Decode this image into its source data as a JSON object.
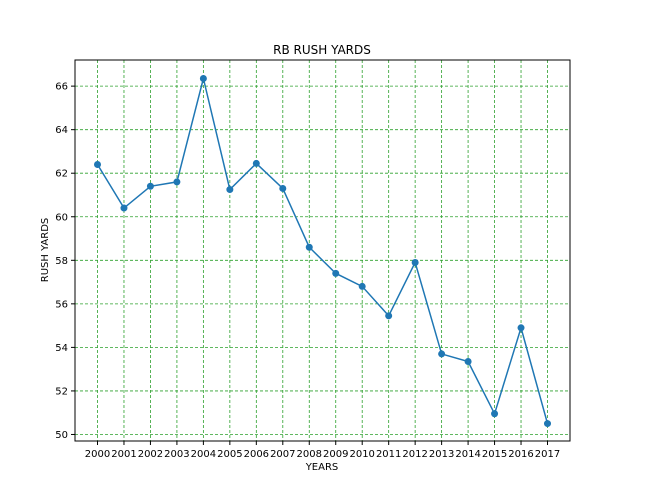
{
  "chart_data": {
    "type": "line",
    "title": "RB RUSH YARDS",
    "xlabel": "YEARS",
    "ylabel": "RUSH YARDS",
    "categories": [
      "2000",
      "2001",
      "2002",
      "2003",
      "2004",
      "2005",
      "2006",
      "2007",
      "2008",
      "2009",
      "2010",
      "2011",
      "2012",
      "2013",
      "2014",
      "2015",
      "2016",
      "2017"
    ],
    "series": [
      {
        "values": [
          62.4,
          60.4,
          61.4,
          61.6,
          66.35,
          61.25,
          62.45,
          61.3,
          58.6,
          57.4,
          56.8,
          55.45,
          57.9,
          53.7,
          53.35,
          50.95,
          54.9,
          50.5
        ],
        "color": "#1f77b4"
      }
    ],
    "yticks": [
      50,
      52,
      54,
      56,
      58,
      60,
      62,
      64,
      66
    ],
    "ylim": [
      49.7,
      67.2
    ],
    "grid": true,
    "grid_color": "#2ca02c",
    "marker": "circle"
  }
}
